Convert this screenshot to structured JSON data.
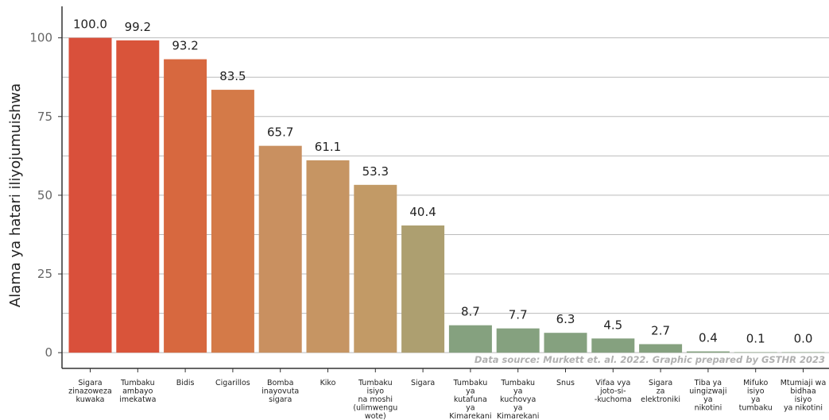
{
  "chart_data": {
    "type": "bar",
    "ylabel": "Alama ya hatari iliyojumuishwa",
    "xlabel": "",
    "ylim": [
      -5,
      110
    ],
    "yticks": [
      0,
      25,
      50,
      75,
      100
    ],
    "grid": true,
    "source_note": "Data source: Murkett et. al. 2022. Graphic prepared by GSTHR 2023",
    "categories": [
      "Sigara zinazoweza kuwaka",
      "Tumbaku ambayo imekatwa",
      "Bidis",
      "Cigarillos",
      "Bomba inayovuta sigara",
      "Kiko",
      "Tumbaku isiyo na moshi (ulimwengu wote)",
      "Sigara",
      "Tumbaku ya kutafuna ya Kimarekani",
      "Tumbaku ya kuchovya ya Kimarekani",
      "Snus",
      "Vifaa vya joto-si--kuchoma",
      "Sigara za elektroniki",
      "Tiba ya uingizwaji ya nikotini",
      "Mifuko isiyo ya tumbaku",
      "Mtumiaji wa bidhaa isiyo ya nikotini"
    ],
    "category_lines": [
      [
        "Sigara",
        "zinazoweza",
        "kuwaka"
      ],
      [
        "Tumbaku",
        "ambayo",
        "imekatwa"
      ],
      [
        "Bidis"
      ],
      [
        "Cigarillos"
      ],
      [
        "Bomba",
        "inayovuta",
        "sigara"
      ],
      [
        "Kiko"
      ],
      [
        "Tumbaku",
        "isiyo",
        "na moshi",
        "(ulimwengu",
        "wote)"
      ],
      [
        "Sigara"
      ],
      [
        "Tumbaku",
        "ya",
        "kutafuna",
        "ya",
        "Kimarekani"
      ],
      [
        "Tumbaku",
        "ya",
        "kuchovya",
        "ya",
        "Kimarekani"
      ],
      [
        "Snus"
      ],
      [
        "Vifaa vya",
        "joto-si-",
        "-kuchoma"
      ],
      [
        "Sigara",
        "za",
        "elektroniki"
      ],
      [
        "Tiba ya",
        "uingizwaji",
        "ya",
        "nikotini"
      ],
      [
        "Mifuko",
        "isiyo",
        "ya",
        "tumbaku"
      ],
      [
        "Mtumiaji wa",
        "bidhaa",
        "isiyo",
        "ya nikotini"
      ]
    ],
    "values": [
      100.0,
      99.2,
      93.2,
      83.5,
      65.7,
      61.1,
      53.3,
      40.4,
      8.7,
      7.7,
      6.3,
      4.5,
      2.7,
      0.4,
      0.1,
      0.0
    ],
    "value_labels": [
      "100.0",
      "99.2",
      "93.2",
      "83.5",
      "65.7",
      "61.1",
      "53.3",
      "40.4",
      "8.7",
      "7.7",
      "6.3",
      "4.5",
      "2.7",
      "0.4",
      "0.1",
      "0.0"
    ],
    "colors": [
      "#d9503b",
      "#d9543a",
      "#d7683f",
      "#d47a48",
      "#c99060",
      "#c69563",
      "#c29a66",
      "#ad9f70",
      "#85a17f",
      "#85a17f",
      "#85a17f",
      "#85a17f",
      "#85a17f",
      "#85a17f",
      "#85a17f",
      "#85a17f"
    ],
    "gridline_color": "#bbbbbb",
    "axis_color": "#333333"
  }
}
